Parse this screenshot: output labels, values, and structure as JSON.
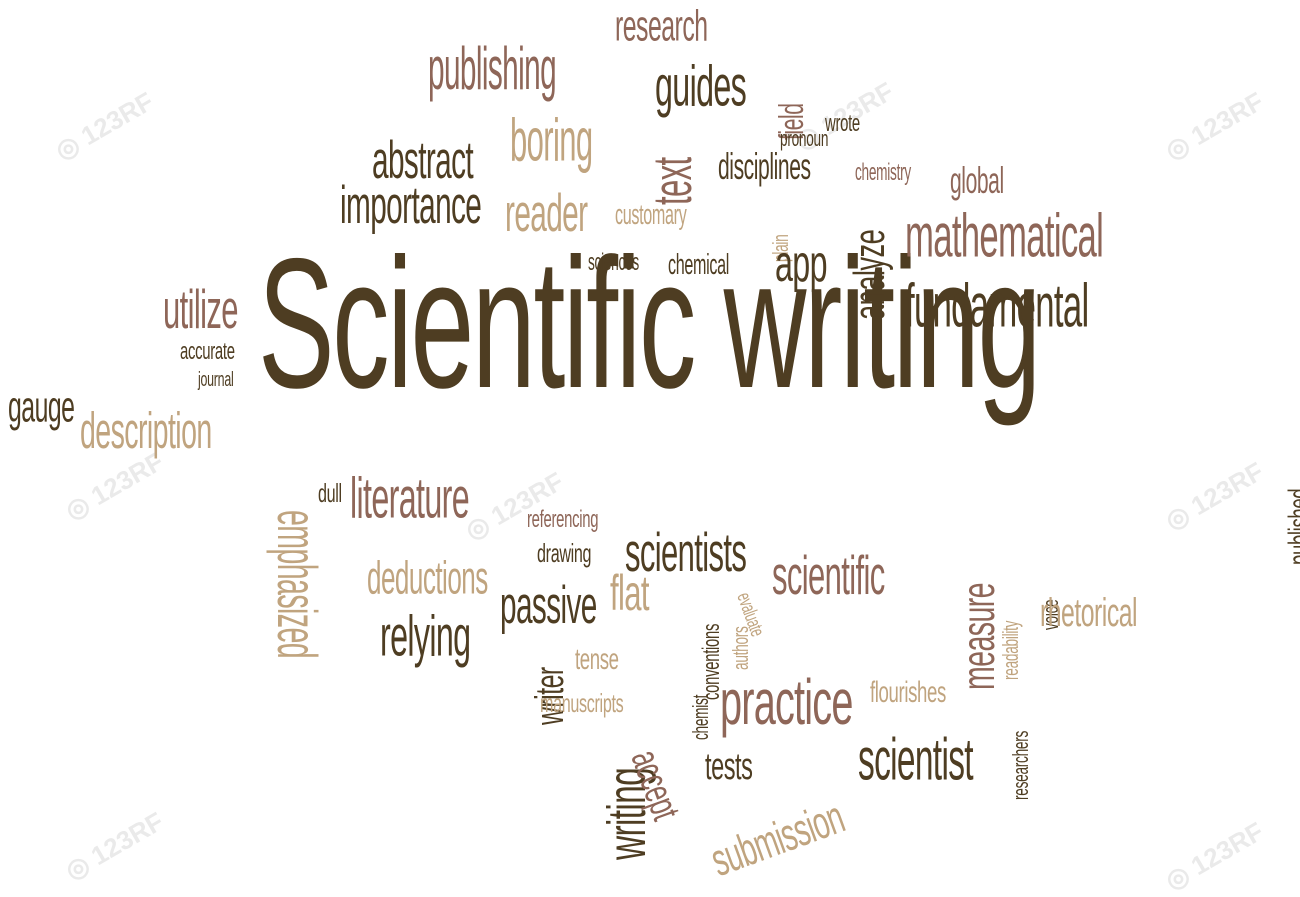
{
  "colors": {
    "dark": "#4e3d22",
    "mauve": "#8e6658",
    "tan": "#c0a47f",
    "watermark": "#e6e6e6"
  },
  "watermark": {
    "text": "123RF",
    "icon": "camera-watermark-icon"
  },
  "words": [
    {
      "text": "Scientific writing",
      "size": "xl",
      "color": "dark",
      "rotate": 0
    },
    {
      "text": "research",
      "size": "md",
      "color": "mauve",
      "rotate": 0
    },
    {
      "text": "publishing",
      "size": "lg",
      "color": "mauve",
      "rotate": 0
    },
    {
      "text": "guides",
      "size": "lg",
      "color": "dark",
      "rotate": 0
    },
    {
      "text": "field",
      "size": "md",
      "color": "mauve",
      "rotate": -90
    },
    {
      "text": "wrote",
      "size": "sm",
      "color": "dark",
      "rotate": 0
    },
    {
      "text": "pronoun",
      "size": "sm",
      "color": "dark",
      "rotate": 0
    },
    {
      "text": "boring",
      "size": "lg",
      "color": "tan",
      "rotate": 0
    },
    {
      "text": "text",
      "size": "lg",
      "color": "mauve",
      "rotate": -90
    },
    {
      "text": "abstract",
      "size": "lg",
      "color": "dark",
      "rotate": 0
    },
    {
      "text": "disciplines",
      "size": "md",
      "color": "dark",
      "rotate": 0
    },
    {
      "text": "chemistry",
      "size": "sm",
      "color": "mauve",
      "rotate": 0
    },
    {
      "text": "global",
      "size": "sm",
      "color": "mauve",
      "rotate": 0
    },
    {
      "text": "importance",
      "size": "lg",
      "color": "dark",
      "rotate": 0
    },
    {
      "text": "reader",
      "size": "lg",
      "color": "tan",
      "rotate": 0
    },
    {
      "text": "customary",
      "size": "sm",
      "color": "tan",
      "rotate": 0
    },
    {
      "text": "plain",
      "size": "sm",
      "color": "tan",
      "rotate": -90
    },
    {
      "text": "analyze",
      "size": "md",
      "color": "dark",
      "rotate": -90
    },
    {
      "text": "mathematical",
      "size": "lg",
      "color": "mauve",
      "rotate": 0
    },
    {
      "text": "sciences",
      "size": "sm",
      "color": "dark",
      "rotate": 0
    },
    {
      "text": "chemical",
      "size": "sm",
      "color": "dark",
      "rotate": 0
    },
    {
      "text": "app",
      "size": "lg",
      "color": "dark",
      "rotate": 0
    },
    {
      "text": "fundamental",
      "size": "lg",
      "color": "dark",
      "rotate": 0
    },
    {
      "text": "utilize",
      "size": "lg",
      "color": "mauve",
      "rotate": 0
    },
    {
      "text": "accurate",
      "size": "sm",
      "color": "dark",
      "rotate": 0
    },
    {
      "text": "journal",
      "size": "sm",
      "color": "dark",
      "rotate": 0
    },
    {
      "text": "gauge",
      "size": "md",
      "color": "dark",
      "rotate": 0
    },
    {
      "text": "description",
      "size": "lg",
      "color": "tan",
      "rotate": 0
    },
    {
      "text": "published",
      "size": "sm",
      "color": "dark",
      "rotate": -90
    },
    {
      "text": "dull",
      "size": "sm",
      "color": "dark",
      "rotate": 0
    },
    {
      "text": "literature",
      "size": "lg",
      "color": "mauve",
      "rotate": 0
    },
    {
      "text": "referencing",
      "size": "sm",
      "color": "mauve",
      "rotate": 0
    },
    {
      "text": "scientists",
      "size": "lg",
      "color": "dark",
      "rotate": 0
    },
    {
      "text": "scientific",
      "size": "lg",
      "color": "mauve",
      "rotate": 0
    },
    {
      "text": "emphasized",
      "size": "lg",
      "color": "tan",
      "rotate": 90
    },
    {
      "text": "drawing",
      "size": "sm",
      "color": "dark",
      "rotate": 0
    },
    {
      "text": "deductions",
      "size": "md",
      "color": "tan",
      "rotate": 0
    },
    {
      "text": "flat",
      "size": "lg",
      "color": "tan",
      "rotate": 0
    },
    {
      "text": "conventions",
      "size": "sm",
      "color": "dark",
      "rotate": -90
    },
    {
      "text": "authors",
      "size": "sm",
      "color": "tan",
      "rotate": -90
    },
    {
      "text": "evaluate",
      "size": "sm",
      "color": "tan",
      "rotate": 70
    },
    {
      "text": "measure",
      "size": "lg",
      "color": "mauve",
      "rotate": -90
    },
    {
      "text": "readability",
      "size": "sm",
      "color": "tan",
      "rotate": -90
    },
    {
      "text": "voice",
      "size": "sm",
      "color": "dark",
      "rotate": -90
    },
    {
      "text": "rhetorical",
      "size": "md",
      "color": "tan",
      "rotate": 0
    },
    {
      "text": "passive",
      "size": "lg",
      "color": "dark",
      "rotate": 0
    },
    {
      "text": "relying",
      "size": "lg",
      "color": "dark",
      "rotate": 0
    },
    {
      "text": "tense",
      "size": "sm",
      "color": "tan",
      "rotate": 0
    },
    {
      "text": "writer",
      "size": "md",
      "color": "dark",
      "rotate": -90
    },
    {
      "text": "chemist",
      "size": "sm",
      "color": "dark",
      "rotate": -90
    },
    {
      "text": "manuscripts",
      "size": "sm",
      "color": "tan",
      "rotate": 0
    },
    {
      "text": "practice",
      "size": "lg",
      "color": "mauve",
      "rotate": 0
    },
    {
      "text": "flourishes",
      "size": "sm",
      "color": "tan",
      "rotate": 0
    },
    {
      "text": "researchers",
      "size": "sm",
      "color": "dark",
      "rotate": -90
    },
    {
      "text": "writing",
      "size": "lg",
      "color": "dark",
      "rotate": -90
    },
    {
      "text": "accept",
      "size": "md",
      "color": "mauve",
      "rotate": 70
    },
    {
      "text": "tests",
      "size": "md",
      "color": "dark",
      "rotate": 0
    },
    {
      "text": "scientist",
      "size": "lg",
      "color": "dark",
      "rotate": 0
    },
    {
      "text": "submission",
      "size": "lg",
      "color": "tan",
      "rotate": -20
    }
  ]
}
